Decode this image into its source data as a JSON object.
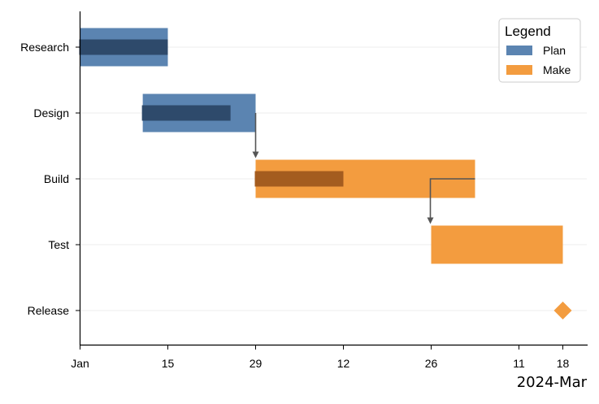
{
  "chart_data": {
    "type": "gantt",
    "x_axis": {
      "type": "date",
      "range": [
        "2024-01-01",
        "2024-03-21"
      ],
      "ticks": [
        {
          "date": "2024-01-01",
          "label": "Jan"
        },
        {
          "date": "2024-01-15",
          "label": "15"
        },
        {
          "date": "2024-01-29",
          "label": "29"
        },
        {
          "date": "2024-02-12",
          "label": "12"
        },
        {
          "date": "2024-02-26",
          "label": "26"
        },
        {
          "date": "2024-03-11",
          "label": "11"
        },
        {
          "date": "2024-03-18",
          "label": "18"
        }
      ],
      "offset_label": "2024-Mar"
    },
    "categories": [
      "Research",
      "Design",
      "Build",
      "Test",
      "Release"
    ],
    "tasks": [
      {
        "name": "Research",
        "group": "Plan",
        "start": "2024-01-01",
        "end": "2024-01-15",
        "progress_end": "2024-01-15"
      },
      {
        "name": "Design",
        "group": "Plan",
        "start": "2024-01-11",
        "end": "2024-01-29",
        "progress_end": "2024-01-25"
      },
      {
        "name": "Build",
        "group": "Make",
        "start": "2024-01-29",
        "end": "2024-03-04",
        "progress_end": "2024-02-12"
      },
      {
        "name": "Test",
        "group": "Make",
        "start": "2024-02-26",
        "end": "2024-03-18",
        "progress_end": null
      },
      {
        "name": "Release",
        "group": "Make",
        "milestone": "2024-03-18"
      }
    ],
    "dependencies": [
      {
        "from": "Design",
        "to": "Build"
      },
      {
        "from": "Build",
        "to": "Test"
      }
    ],
    "legend": {
      "title": "Legend",
      "placement": "top-right",
      "items": [
        {
          "label": "Plan",
          "color": "#5b84b1"
        },
        {
          "label": "Make",
          "color": "#f39c3f"
        }
      ]
    },
    "colors": {
      "Plan": "#5b84b1",
      "Plan_progress": "#2e4a6b",
      "Make": "#f39c3f",
      "Make_progress": "#a45c1f",
      "arrow": "#555555",
      "grid": "#eeeeee"
    },
    "grid": "horizontal"
  }
}
